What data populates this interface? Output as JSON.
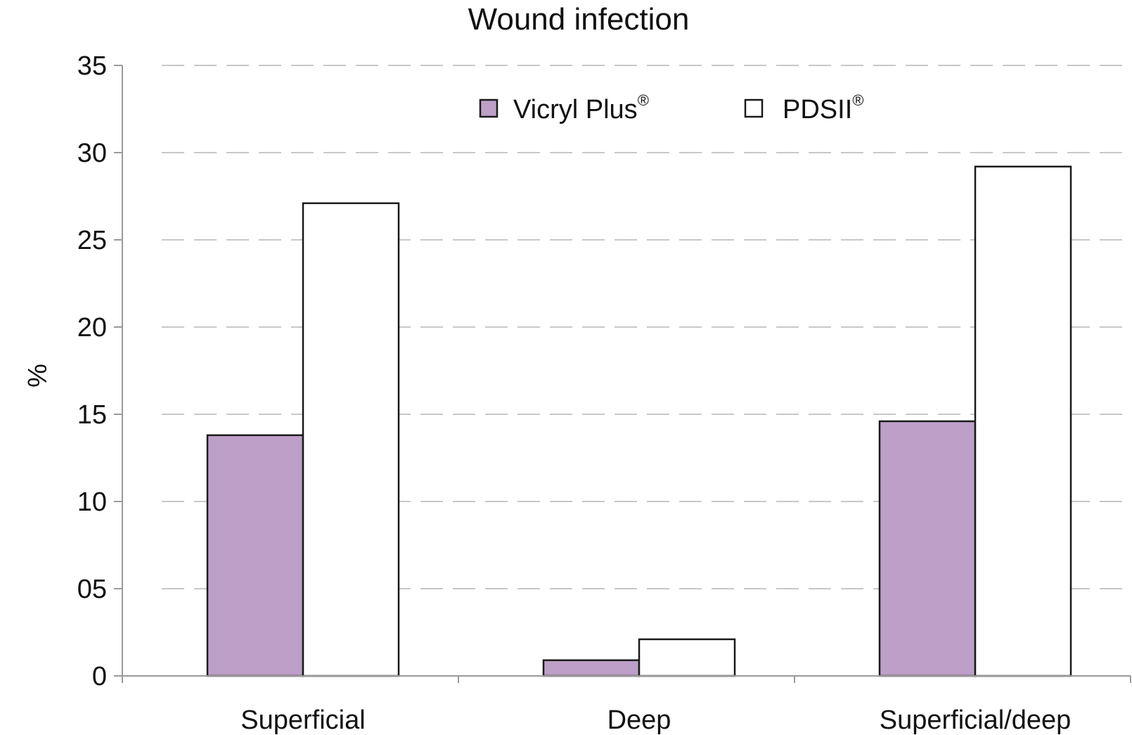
{
  "chart_data": {
    "type": "bar",
    "title": "Wound infection",
    "xlabel": "",
    "ylabel": "%",
    "ylim": [
      0,
      35
    ],
    "yticks": [
      0,
      5,
      10,
      15,
      20,
      25,
      30,
      35
    ],
    "ytick_labels": [
      "0",
      "05",
      "10",
      "15",
      "20",
      "25",
      "30",
      "35"
    ],
    "grid": "horizontal-dashed",
    "legend": "top-center",
    "categories": [
      "Superficial",
      "Deep",
      "Superficial/deep"
    ],
    "series": [
      {
        "name": "Vicryl Plus",
        "mark": "®",
        "color": "#bd9fc8",
        "values": [
          13.8,
          0.9,
          14.6
        ]
      },
      {
        "name": "PDSII",
        "mark": "®",
        "color": "#ffffff",
        "values": [
          27.1,
          2.1,
          29.2
        ]
      }
    ]
  }
}
